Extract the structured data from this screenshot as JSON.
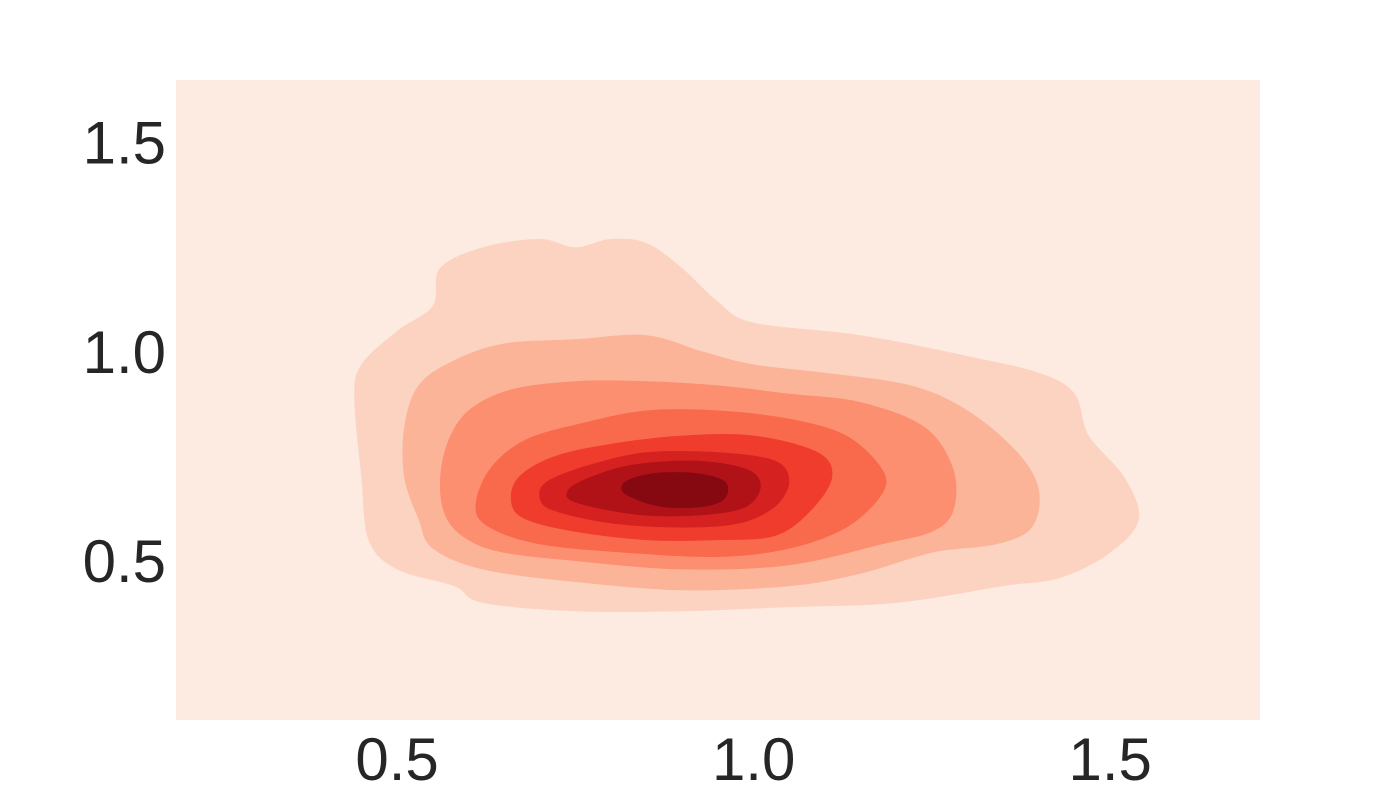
{
  "chart_data": {
    "type": "kde_contour",
    "title": "",
    "xlabel": "",
    "ylabel": "",
    "xlim": [
      0.19,
      1.71
    ],
    "ylim": [
      0.12,
      1.65
    ],
    "xticks": [
      0.5,
      1.0,
      1.5
    ],
    "yticks": [
      0.5,
      1.0,
      1.5
    ],
    "xtick_labels": [
      "0.5",
      "1.0",
      "1.5"
    ],
    "ytick_labels": [
      "0.5",
      "1.0",
      "1.5"
    ],
    "grid": false,
    "legend": "none",
    "colormap": "Reds",
    "background_color": "#fdebe1",
    "levels": [
      {
        "level": 1,
        "color": "#fcd3c1",
        "polygon": [
          [
            0.58,
            0.44
          ],
          [
            0.62,
            0.4
          ],
          [
            0.75,
            0.38
          ],
          [
            0.9,
            0.38
          ],
          [
            1.05,
            0.39
          ],
          [
            1.2,
            0.4
          ],
          [
            1.35,
            0.44
          ],
          [
            1.43,
            0.46
          ],
          [
            1.5,
            0.52
          ],
          [
            1.54,
            0.6
          ],
          [
            1.52,
            0.7
          ],
          [
            1.47,
            0.8
          ],
          [
            1.45,
            0.9
          ],
          [
            1.4,
            0.95
          ],
          [
            1.3,
            0.99
          ],
          [
            1.15,
            1.04
          ],
          [
            1.0,
            1.07
          ],
          [
            0.95,
            1.12
          ],
          [
            0.9,
            1.2
          ],
          [
            0.85,
            1.26
          ],
          [
            0.8,
            1.27
          ],
          [
            0.75,
            1.25
          ],
          [
            0.7,
            1.27
          ],
          [
            0.62,
            1.25
          ],
          [
            0.56,
            1.2
          ],
          [
            0.55,
            1.11
          ],
          [
            0.5,
            1.05
          ],
          [
            0.45,
            0.97
          ],
          [
            0.44,
            0.89
          ],
          [
            0.45,
            0.7
          ],
          [
            0.46,
            0.55
          ],
          [
            0.5,
            0.48
          ]
        ]
      },
      {
        "level": 2,
        "color": "#fcb499",
        "polygon": [
          [
            0.53,
            0.6
          ],
          [
            0.55,
            0.53
          ],
          [
            0.62,
            0.48
          ],
          [
            0.75,
            0.45
          ],
          [
            0.9,
            0.43
          ],
          [
            1.05,
            0.44
          ],
          [
            1.15,
            0.47
          ],
          [
            1.25,
            0.52
          ],
          [
            1.34,
            0.54
          ],
          [
            1.39,
            0.58
          ],
          [
            1.4,
            0.67
          ],
          [
            1.37,
            0.76
          ],
          [
            1.3,
            0.86
          ],
          [
            1.22,
            0.92
          ],
          [
            1.1,
            0.95
          ],
          [
            1.0,
            0.97
          ],
          [
            0.93,
            1.0
          ],
          [
            0.85,
            1.04
          ],
          [
            0.75,
            1.03
          ],
          [
            0.65,
            1.02
          ],
          [
            0.58,
            0.98
          ],
          [
            0.53,
            0.92
          ],
          [
            0.51,
            0.82
          ],
          [
            0.51,
            0.7
          ]
        ]
      },
      {
        "level": 3,
        "color": "#fc8f6f",
        "polygon": [
          [
            0.6,
            0.55
          ],
          [
            0.65,
            0.52
          ],
          [
            0.75,
            0.5
          ],
          [
            0.9,
            0.48
          ],
          [
            1.05,
            0.49
          ],
          [
            1.18,
            0.54
          ],
          [
            1.25,
            0.57
          ],
          [
            1.28,
            0.62
          ],
          [
            1.28,
            0.72
          ],
          [
            1.24,
            0.82
          ],
          [
            1.15,
            0.88
          ],
          [
            1.05,
            0.9
          ],
          [
            0.95,
            0.92
          ],
          [
            0.85,
            0.93
          ],
          [
            0.75,
            0.93
          ],
          [
            0.66,
            0.91
          ],
          [
            0.6,
            0.86
          ],
          [
            0.57,
            0.78
          ],
          [
            0.56,
            0.68
          ],
          [
            0.57,
            0.6
          ]
        ]
      },
      {
        "level": 4,
        "color": "#f9694c",
        "polygon": [
          [
            0.63,
            0.58
          ],
          [
            0.7,
            0.54
          ],
          [
            0.82,
            0.52
          ],
          [
            0.95,
            0.51
          ],
          [
            1.05,
            0.53
          ],
          [
            1.13,
            0.58
          ],
          [
            1.18,
            0.66
          ],
          [
            1.18,
            0.72
          ],
          [
            1.13,
            0.8
          ],
          [
            1.05,
            0.84
          ],
          [
            0.95,
            0.86
          ],
          [
            0.85,
            0.86
          ],
          [
            0.76,
            0.83
          ],
          [
            0.68,
            0.79
          ],
          [
            0.63,
            0.72
          ],
          [
            0.61,
            0.63
          ]
        ]
      },
      {
        "level": 5,
        "color": "#ef3c2c",
        "polygon": [
          [
            0.68,
            0.6
          ],
          [
            0.75,
            0.57
          ],
          [
            0.85,
            0.55
          ],
          [
            0.95,
            0.55
          ],
          [
            1.03,
            0.56
          ],
          [
            1.08,
            0.62
          ],
          [
            1.11,
            0.7
          ],
          [
            1.09,
            0.76
          ],
          [
            1.0,
            0.8
          ],
          [
            0.9,
            0.8
          ],
          [
            0.8,
            0.78
          ],
          [
            0.72,
            0.75
          ],
          [
            0.67,
            0.7
          ],
          [
            0.66,
            0.64
          ]
        ]
      },
      {
        "level": 6,
        "color": "#d52221",
        "polygon": [
          [
            0.72,
            0.62
          ],
          [
            0.8,
            0.59
          ],
          [
            0.9,
            0.58
          ],
          [
            0.98,
            0.59
          ],
          [
            1.03,
            0.63
          ],
          [
            1.05,
            0.69
          ],
          [
            1.03,
            0.74
          ],
          [
            0.95,
            0.76
          ],
          [
            0.85,
            0.76
          ],
          [
            0.77,
            0.73
          ],
          [
            0.71,
            0.69
          ],
          [
            0.7,
            0.65
          ]
        ]
      },
      {
        "level": 7,
        "color": "#b11218",
        "polygon": [
          [
            0.75,
            0.64
          ],
          [
            0.84,
            0.61
          ],
          [
            0.93,
            0.61
          ],
          [
            0.99,
            0.63
          ],
          [
            1.01,
            0.68
          ],
          [
            0.99,
            0.72
          ],
          [
            0.92,
            0.74
          ],
          [
            0.83,
            0.73
          ],
          [
            0.77,
            0.7
          ],
          [
            0.74,
            0.67
          ]
        ]
      },
      {
        "level": 8,
        "color": "#860811",
        "polygon": [
          [
            0.82,
            0.66
          ],
          [
            0.87,
            0.63
          ],
          [
            0.93,
            0.63
          ],
          [
            0.96,
            0.65
          ],
          [
            0.96,
            0.69
          ],
          [
            0.92,
            0.71
          ],
          [
            0.86,
            0.71
          ],
          [
            0.82,
            0.69
          ]
        ]
      }
    ]
  }
}
